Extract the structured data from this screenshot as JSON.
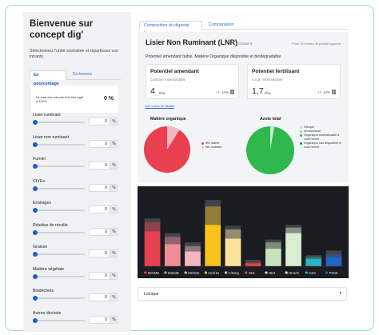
{
  "sidebar": {
    "title": "Bienvenue sur concept dig'",
    "description": "Sélectionnez l'unité souhaitée et répartissez vos intrants",
    "tabs": [
      {
        "label": "En pourcentage"
      },
      {
        "label": "En tonnes"
      }
    ],
    "total_text": "Le total des intrants doit être égal à 100%",
    "total_value": "0 %",
    "fields": [
      {
        "label": "Lisier ruminant",
        "value": "0",
        "unit": "%"
      },
      {
        "label": "Lisier non ruminant",
        "value": "0",
        "unit": "%"
      },
      {
        "label": "Fumier",
        "value": "0",
        "unit": "%"
      },
      {
        "label": "CIVEs",
        "value": "0",
        "unit": "%"
      },
      {
        "label": "Ensilages",
        "value": "0",
        "unit": "%"
      },
      {
        "label": "Résidus de récolte",
        "value": "0",
        "unit": "%"
      },
      {
        "label": "Graisse",
        "value": "0",
        "unit": "%"
      },
      {
        "label": "Matière végétale",
        "value": "0",
        "unit": "%"
      },
      {
        "label": "Biodéchets",
        "value": "0",
        "unit": "%"
      },
      {
        "label": "Autres déchets",
        "value": "0",
        "unit": "%"
      }
    ]
  },
  "tabs": [
    {
      "label": "Composition du digestat brut"
    },
    {
      "label": "Comparaison"
    }
  ],
  "panel": {
    "title": "Lisier Non Ruminant (LNR)",
    "class": "Classe 6",
    "note": "Pour 10 tonnes de produit apporté",
    "description": "Potentiel amendant faible. Matière Organique disponible et biodégradable.",
    "cards": [
      {
        "title": "Potentiel amendant",
        "subtitle": "Carbone minéralisable",
        "value": "4",
        "unit": "t/ha",
        "pm": "+/- 14%",
        "info": "i"
      },
      {
        "title": "Potentiel fertilisant",
        "subtitle": "Azote minéralisable",
        "value": "1,7",
        "unit": "t/ha",
        "pm": "+/- 14%",
        "info": "i"
      }
    ],
    "details_link": "Voir moins de détails",
    "pies": [
      {
        "title": "Matière organique",
        "legend": [
          {
            "label": "MO stable",
            "color": "#e8404f"
          },
          {
            "label": "MO instable",
            "color": "#f2b8c0"
          }
        ]
      },
      {
        "title": "Azote total",
        "legend": [
          {
            "label": "Nitrique",
            "color": "#cfe9c9"
          },
          {
            "label": "Ammoniacal",
            "color": "#8fd07f"
          },
          {
            "label": "Organique minéralisable à court terme",
            "color": "#2eb84e"
          },
          {
            "label": "Organique non disponible à court terme",
            "color": "#14853a"
          }
        ]
      }
    ]
  },
  "chart_data": {
    "type": "bar",
    "categories": [
      "MO/MB",
      "MS/MB",
      "MO/MS",
      "Ctot/10",
      "C/Norg",
      "Ntot",
      "NH4",
      "NH4/N",
      "K2O",
      "P2O5"
    ],
    "series": [
      {
        "values": [
          38,
          24,
          16,
          45,
          30,
          3,
          19,
          36,
          8,
          10
        ],
        "color": [
          "#e8404f",
          "#f08c98",
          "#f4b6bf",
          "#f7c21e",
          "#fbe29a",
          "#e8404f",
          "#c7e3bd",
          "#d7efcf",
          "#29b3c4",
          "#1f63c4"
        ]
      },
      {
        "values": [
          48,
          32,
          22,
          65,
          40,
          4,
          26,
          42,
          10,
          13
        ]
      },
      {
        "values": [
          52,
          36,
          26,
          72,
          44,
          7,
          29,
          45,
          12,
          17
        ]
      }
    ],
    "ylim": [
      0,
      80
    ],
    "grid": false,
    "background": "#1a1c22"
  },
  "lexique": {
    "label": "Lexique",
    "chevron": "chevron-down-icon"
  }
}
